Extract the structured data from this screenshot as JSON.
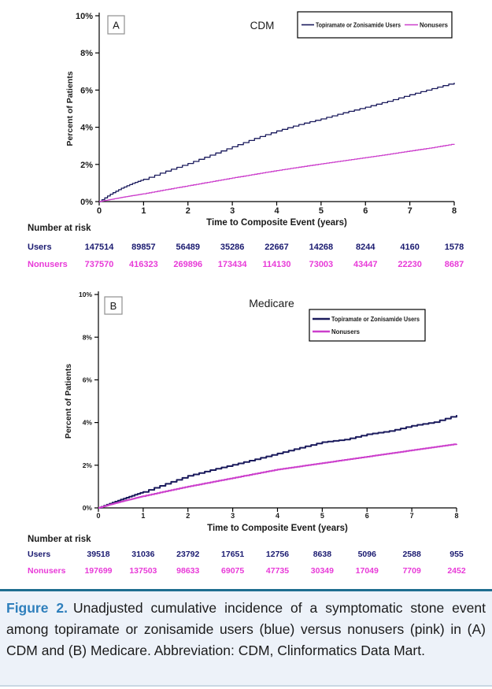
{
  "colors": {
    "users": "#1a1a5c",
    "nonusers": "#cc3fcc",
    "users_text": "#1a1a70",
    "nonusers_text": "#e83ad8",
    "axis_text": "#1a1a1a",
    "axis_line": "#000000",
    "rule": "#1e6e90",
    "rule_bottom": "#c9d8e4",
    "caption_label": "#2e7fbc",
    "caption_bg": "#edf2f9",
    "panel_box_border": "#909090"
  },
  "figure": {
    "caption_label": "Figure 2.",
    "caption_text": "Unadjusted cumulative incidence of a symptomatic stone event among topiramate or zonisamide users (blue) versus nonusers (pink) in (A) CDM and (B) Medicare. Abbreviation: CDM, Clinformatics Data Mart."
  },
  "chart_data": [
    {
      "type": "line",
      "panel_label": "A",
      "title": "CDM",
      "xlabel": "Time to Composite Event (years)",
      "ylabel": "Percent of Patients",
      "xlim": [
        0,
        8
      ],
      "ylim": [
        0,
        10
      ],
      "x_ticks": [
        "0",
        "1",
        "2",
        "3",
        "4",
        "5",
        "6",
        "7",
        "8"
      ],
      "y_tick_labels": [
        "0%",
        "2%",
        "4%",
        "6%",
        "8%",
        "10%"
      ],
      "y_tick_values": [
        0,
        2,
        4,
        6,
        8,
        10
      ],
      "grid": false,
      "legend": {
        "position": "top-right",
        "orientation": "horizontal",
        "entries": [
          "Topiramate or Zonisamide Users",
          "Nonusers"
        ]
      },
      "series": [
        {
          "name": "Topiramate or Zonisamide Users",
          "color_key": "users",
          "x": [
            0,
            0.25,
            0.5,
            0.75,
            1,
            1.5,
            2,
            2.5,
            3,
            3.5,
            4,
            4.5,
            5,
            5.5,
            6,
            6.5,
            7,
            7.5,
            8
          ],
          "values": [
            0,
            0.4,
            0.72,
            0.98,
            1.2,
            1.64,
            2.05,
            2.5,
            2.95,
            3.4,
            3.8,
            4.15,
            4.45,
            4.78,
            5.08,
            5.4,
            5.75,
            6.08,
            6.4
          ]
        },
        {
          "name": "Nonusers",
          "color_key": "nonusers",
          "x": [
            0,
            0.25,
            0.5,
            0.75,
            1,
            1.5,
            2,
            2.5,
            3,
            3.5,
            4,
            4.5,
            5,
            5.5,
            6,
            6.5,
            7,
            7.5,
            8
          ],
          "values": [
            0,
            0.11,
            0.22,
            0.32,
            0.42,
            0.64,
            0.85,
            1.06,
            1.27,
            1.47,
            1.67,
            1.85,
            2.03,
            2.2,
            2.37,
            2.54,
            2.72,
            2.9,
            3.1
          ]
        }
      ],
      "number_at_risk": {
        "header": "Number at risk",
        "rows": [
          {
            "label": "Users",
            "color_key": "users_text",
            "values": [
              "147514",
              "89857",
              "56489",
              "35286",
              "22667",
              "14268",
              "8244",
              "4160",
              "1578"
            ]
          },
          {
            "label": "Nonusers",
            "color_key": "nonusers_text",
            "values": [
              "737570",
              "416323",
              "269896",
              "173434",
              "114130",
              "73003",
              "43447",
              "22230",
              "8687"
            ]
          }
        ]
      }
    },
    {
      "type": "line",
      "panel_label": "B",
      "title": "Medicare",
      "xlabel": "Time to Composite Event (years)",
      "ylabel": "Percent of Patients",
      "xlim": [
        0,
        8
      ],
      "ylim": [
        0,
        10
      ],
      "x_ticks": [
        "0",
        "1",
        "2",
        "3",
        "4",
        "5",
        "6",
        "7",
        "8"
      ],
      "y_tick_labels": [
        "0%",
        "2%",
        "4%",
        "6%",
        "8%",
        "10%"
      ],
      "y_tick_values": [
        0,
        2,
        4,
        6,
        8,
        10
      ],
      "grid": false,
      "legend": {
        "position": "top-right",
        "orientation": "vertical",
        "entries": [
          "Topiramate or Zonisamide Users",
          "Nonusers"
        ]
      },
      "series": [
        {
          "name": "Topiramate or Zonisamide Users",
          "color_key": "users",
          "x": [
            0,
            0.25,
            0.5,
            0.75,
            1,
            1.5,
            2,
            2.5,
            3,
            3.5,
            4,
            4.5,
            5,
            5.5,
            6,
            6.5,
            7,
            7.5,
            8
          ],
          "values": [
            0,
            0.2,
            0.39,
            0.57,
            0.75,
            1.13,
            1.5,
            1.77,
            2.02,
            2.28,
            2.55,
            2.82,
            3.08,
            3.2,
            3.45,
            3.6,
            3.85,
            4.02,
            4.35
          ]
        },
        {
          "name": "Nonusers",
          "color_key": "nonusers",
          "x": [
            0,
            0.25,
            0.5,
            0.75,
            1,
            1.5,
            2,
            2.5,
            3,
            3.5,
            4,
            4.5,
            5,
            5.5,
            6,
            6.5,
            7,
            7.5,
            8
          ],
          "values": [
            0,
            0.15,
            0.29,
            0.42,
            0.55,
            0.78,
            1.0,
            1.2,
            1.4,
            1.6,
            1.8,
            1.95,
            2.1,
            2.25,
            2.4,
            2.55,
            2.7,
            2.85,
            3.0
          ]
        }
      ],
      "number_at_risk": {
        "header": "Number at risk",
        "rows": [
          {
            "label": "Users",
            "color_key": "users_text",
            "values": [
              "39518",
              "31036",
              "23792",
              "17651",
              "12756",
              "8638",
              "5096",
              "2588",
              "955"
            ]
          },
          {
            "label": "Nonusers",
            "color_key": "nonusers_text",
            "values": [
              "197699",
              "137503",
              "98633",
              "69075",
              "47735",
              "30349",
              "17049",
              "7709",
              "2452"
            ]
          }
        ]
      }
    }
  ]
}
